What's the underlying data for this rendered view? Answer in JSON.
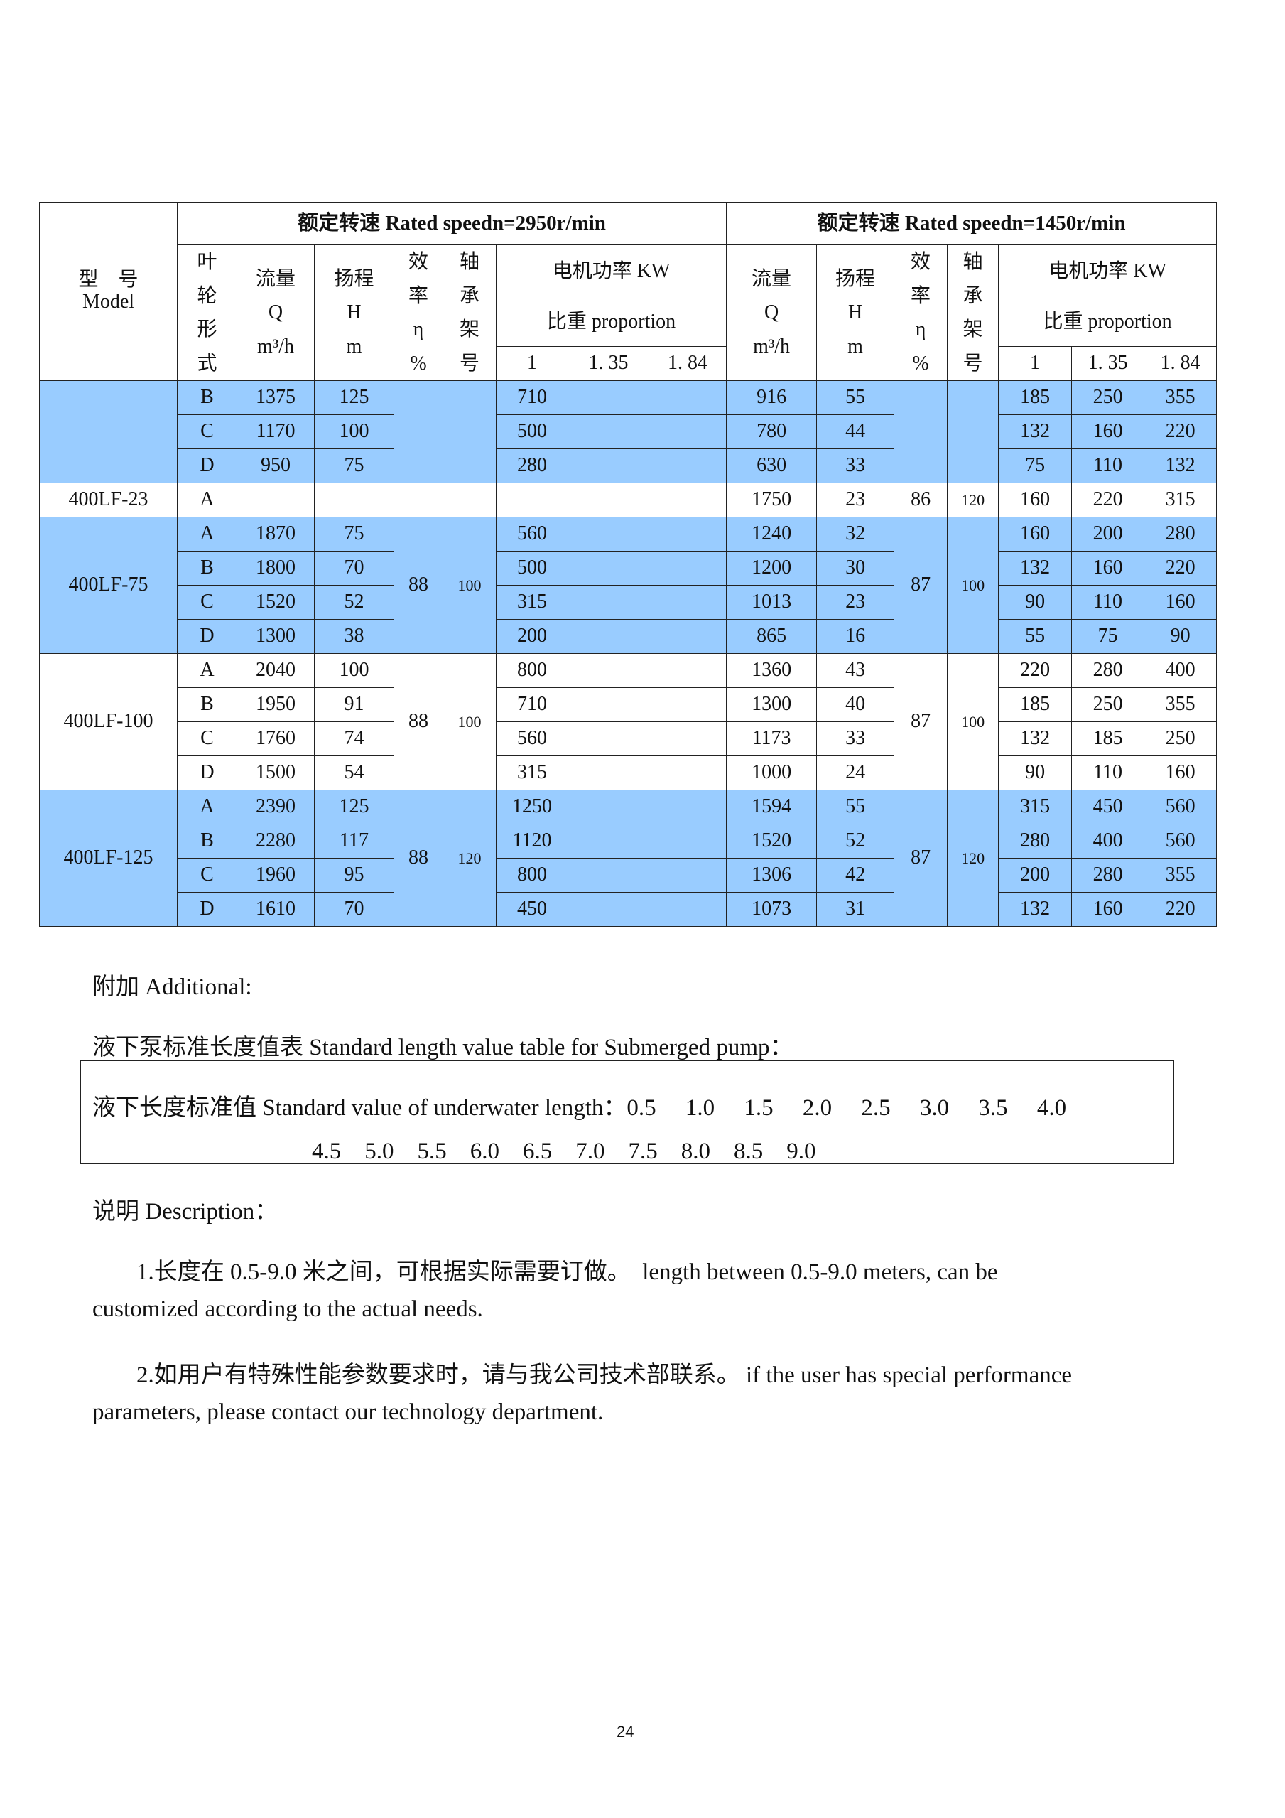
{
  "table": {
    "model_header": [
      "型　号",
      "Model"
    ],
    "speed_2950": "额定转速 Rated speedn=2950r/min",
    "speed_1450": "额定转速 Rated speedn=1450r/min",
    "impeller": [
      "叶",
      "轮",
      "形",
      "式"
    ],
    "flow": [
      "流量",
      "Q",
      "m³/h"
    ],
    "head": [
      "扬程",
      "H",
      "m"
    ],
    "efficiency": [
      "效",
      "率",
      "η",
      "%"
    ],
    "bearing": [
      "轴",
      "承",
      "架",
      "号"
    ],
    "motor_power": "电机功率 KW",
    "proportion": "比重 proportion",
    "proportion_values": [
      "1",
      "1. 35",
      "1. 84"
    ],
    "highlight_color": "#99ccff",
    "groups": [
      {
        "model": "",
        "blue": true,
        "eff2950": "",
        "bear2950": "",
        "eff1450": "",
        "bear1450": "",
        "rows": [
          {
            "imp": "B",
            "q1": "1375",
            "h1": "125",
            "p1": [
              "710",
              "",
              ""
            ],
            "q2": "916",
            "h2": "55",
            "p2": [
              "185",
              "250",
              "355"
            ]
          },
          {
            "imp": "C",
            "q1": "1170",
            "h1": "100",
            "p1": [
              "500",
              "",
              ""
            ],
            "q2": "780",
            "h2": "44",
            "p2": [
              "132",
              "160",
              "220"
            ]
          },
          {
            "imp": "D",
            "q1": "950",
            "h1": "75",
            "p1": [
              "280",
              "",
              ""
            ],
            "q2": "630",
            "h2": "33",
            "p2": [
              "75",
              "110",
              "132"
            ]
          }
        ]
      },
      {
        "model": "400LF-23",
        "blue": false,
        "eff2950": "",
        "bear2950": "",
        "eff1450": "86",
        "bear1450": "120",
        "rows": [
          {
            "imp": "A",
            "q1": "",
            "h1": "",
            "p1": [
              "",
              "",
              ""
            ],
            "q2": "1750",
            "h2": "23",
            "p2": [
              "160",
              "220",
              "315"
            ]
          }
        ]
      },
      {
        "model": "400LF-75",
        "blue": true,
        "eff2950": "88",
        "bear2950": "100",
        "eff1450": "87",
        "bear1450": "100",
        "rows": [
          {
            "imp": "A",
            "q1": "1870",
            "h1": "75",
            "p1": [
              "560",
              "",
              ""
            ],
            "q2": "1240",
            "h2": "32",
            "p2": [
              "160",
              "200",
              "280"
            ]
          },
          {
            "imp": "B",
            "q1": "1800",
            "h1": "70",
            "p1": [
              "500",
              "",
              ""
            ],
            "q2": "1200",
            "h2": "30",
            "p2": [
              "132",
              "160",
              "220"
            ]
          },
          {
            "imp": "C",
            "q1": "1520",
            "h1": "52",
            "p1": [
              "315",
              "",
              ""
            ],
            "q2": "1013",
            "h2": "23",
            "p2": [
              "90",
              "110",
              "160"
            ]
          },
          {
            "imp": "D",
            "q1": "1300",
            "h1": "38",
            "p1": [
              "200",
              "",
              ""
            ],
            "q2": "865",
            "h2": "16",
            "p2": [
              "55",
              "75",
              "90"
            ]
          }
        ]
      },
      {
        "model": "400LF-100",
        "blue": false,
        "eff2950": "88",
        "bear2950": "100",
        "eff1450": "87",
        "bear1450": "100",
        "rows": [
          {
            "imp": "A",
            "q1": "2040",
            "h1": "100",
            "p1": [
              "800",
              "",
              ""
            ],
            "q2": "1360",
            "h2": "43",
            "p2": [
              "220",
              "280",
              "400"
            ]
          },
          {
            "imp": "B",
            "q1": "1950",
            "h1": "91",
            "p1": [
              "710",
              "",
              ""
            ],
            "q2": "1300",
            "h2": "40",
            "p2": [
              "185",
              "250",
              "355"
            ]
          },
          {
            "imp": "C",
            "q1": "1760",
            "h1": "74",
            "p1": [
              "560",
              "",
              ""
            ],
            "q2": "1173",
            "h2": "33",
            "p2": [
              "132",
              "185",
              "250"
            ]
          },
          {
            "imp": "D",
            "q1": "1500",
            "h1": "54",
            "p1": [
              "315",
              "",
              ""
            ],
            "q2": "1000",
            "h2": "24",
            "p2": [
              "90",
              "110",
              "160"
            ]
          }
        ]
      },
      {
        "model": "400LF-125",
        "blue": true,
        "eff2950": "88",
        "bear2950": "120",
        "eff1450": "87",
        "bear1450": "120",
        "rows": [
          {
            "imp": "A",
            "q1": "2390",
            "h1": "125",
            "p1": [
              "1250",
              "",
              ""
            ],
            "q2": "1594",
            "h2": "55",
            "p2": [
              "315",
              "450",
              "560"
            ]
          },
          {
            "imp": "B",
            "q1": "2280",
            "h1": "117",
            "p1": [
              "1120",
              "",
              ""
            ],
            "q2": "1520",
            "h2": "52",
            "p2": [
              "280",
              "400",
              "560"
            ]
          },
          {
            "imp": "C",
            "q1": "1960",
            "h1": "95",
            "p1": [
              "800",
              "",
              ""
            ],
            "q2": "1306",
            "h2": "42",
            "p2": [
              "200",
              "280",
              "355"
            ]
          },
          {
            "imp": "D",
            "q1": "1610",
            "h1": "70",
            "p1": [
              "450",
              "",
              ""
            ],
            "q2": "1073",
            "h2": "31",
            "p2": [
              "132",
              "160",
              "220"
            ]
          }
        ]
      }
    ]
  },
  "additional": {
    "heading": "附加 Additional:",
    "table_title": "液下泵标准长度值表 Standard length value table for Submerged pump：",
    "line1": "液下长度标准值 Standard value of underwater length：0.5　 1.0　 1.5　 2.0　 2.5　 3.0　 3.5　 4.0",
    "line2": "4.5　5.0　5.5　6.0　6.5　7.0　7.5　8.0　8.5　9.0"
  },
  "description": {
    "heading": "说明 Description：",
    "item1_line1": "1.长度在 0.5-9.0 米之间，可根据实际需要订做。　length between 0.5-9.0 meters, can be",
    "item1_line2": "customized according to the actual needs.",
    "item2_line1": "2.如用户有特殊性能参数要求时，请与我公司技术部联系。 if the user has special performance",
    "item2_line2": "parameters, please contact our technology department."
  },
  "page_number": "24"
}
